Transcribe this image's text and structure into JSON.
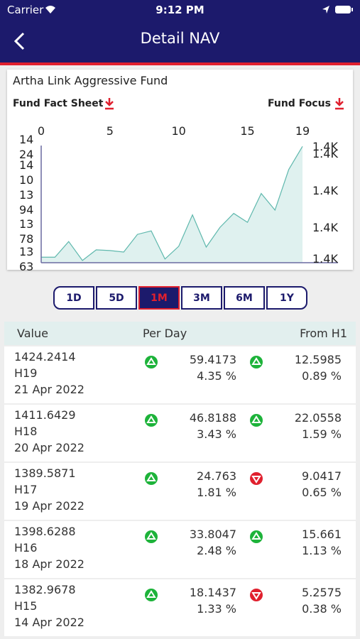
{
  "status_bar": {
    "carrier": "Carrier",
    "time": "9:12 PM"
  },
  "header": {
    "title": "Detail NAV"
  },
  "fund_name": "Artha Link Aggressive Fund",
  "links": [
    "Fund Fact Sheet",
    "Fund Focus"
  ],
  "chart_data": {
    "type": "area",
    "color": "#5fb8ad",
    "fill": "#dff1ef",
    "x": [
      0,
      1,
      2,
      3,
      4,
      5,
      6,
      7,
      8,
      9,
      10,
      11,
      12,
      13,
      14,
      15,
      16,
      17,
      18,
      19
    ],
    "values": [
      1364,
      1364,
      1372.5,
      1362.2,
      1368,
      1367.6,
      1366.8,
      1376.4,
      1378.3,
      1363,
      1369.9,
      1387,
      1369.5,
      1380.2,
      1387.8,
      1382.9678,
      1398.6288,
      1389.5871,
      1411.6429,
      1424.2414
    ],
    "xlim": [
      0,
      19
    ],
    "xticks": [
      0,
      5,
      10,
      15,
      19
    ],
    "ylim": [
      1361,
      1427
    ],
    "yticks": [
      {
        "value": 1424,
        "label": "14\n24"
      },
      {
        "value": 1410,
        "label": "14\n10"
      },
      {
        "value": 1394,
        "label": "13\n94"
      },
      {
        "value": 1378,
        "label": "13\n78"
      },
      {
        "value": 1363,
        "label": "13\n63"
      }
    ],
    "y2lim": [
      1361,
      1427
    ],
    "y2ticks": [
      {
        "value": 1424,
        "label": "1.4K"
      },
      {
        "value": 1420,
        "label": "1.4K"
      },
      {
        "value": 1400,
        "label": "1.4K"
      },
      {
        "value": 1380,
        "label": "1.4K"
      },
      {
        "value": 1363,
        "label": "1.4K"
      }
    ]
  },
  "periods": [
    "1D",
    "5D",
    "1M",
    "3M",
    "6M",
    "1Y"
  ],
  "selected_period": "1M",
  "table": {
    "headers": [
      "Value",
      "Per Day",
      "From H1"
    ],
    "rows": [
      {
        "value": "1424.2414",
        "code": "H19",
        "date": "21 Apr 2022",
        "per_day": "59.4173",
        "per_day_pct": "4.35 %",
        "per_day_dir": "up",
        "from_h1": "12.5985",
        "from_h1_pct": "0.89 %",
        "from_h1_dir": "up"
      },
      {
        "value": "1411.6429",
        "code": "H18",
        "date": "20 Apr 2022",
        "per_day": "46.8188",
        "per_day_pct": "3.43 %",
        "per_day_dir": "up",
        "from_h1": "22.0558",
        "from_h1_pct": "1.59 %",
        "from_h1_dir": "up"
      },
      {
        "value": "1389.5871",
        "code": "H17",
        "date": "19 Apr 2022",
        "per_day": "24.763",
        "per_day_pct": "1.81 %",
        "per_day_dir": "up",
        "from_h1": "9.0417",
        "from_h1_pct": "0.65 %",
        "from_h1_dir": "down"
      },
      {
        "value": "1398.6288",
        "code": "H16",
        "date": "18 Apr 2022",
        "per_day": "33.8047",
        "per_day_pct": "2.48 %",
        "per_day_dir": "up",
        "from_h1": "15.661",
        "from_h1_pct": "1.13 %",
        "from_h1_dir": "up"
      },
      {
        "value": "1382.9678",
        "code": "H15",
        "date": "14 Apr 2022",
        "per_day": "18.1437",
        "per_day_pct": "1.33 %",
        "per_day_dir": "up",
        "from_h1": "5.2575",
        "from_h1_pct": "0.38 %",
        "from_h1_dir": "down"
      }
    ]
  }
}
